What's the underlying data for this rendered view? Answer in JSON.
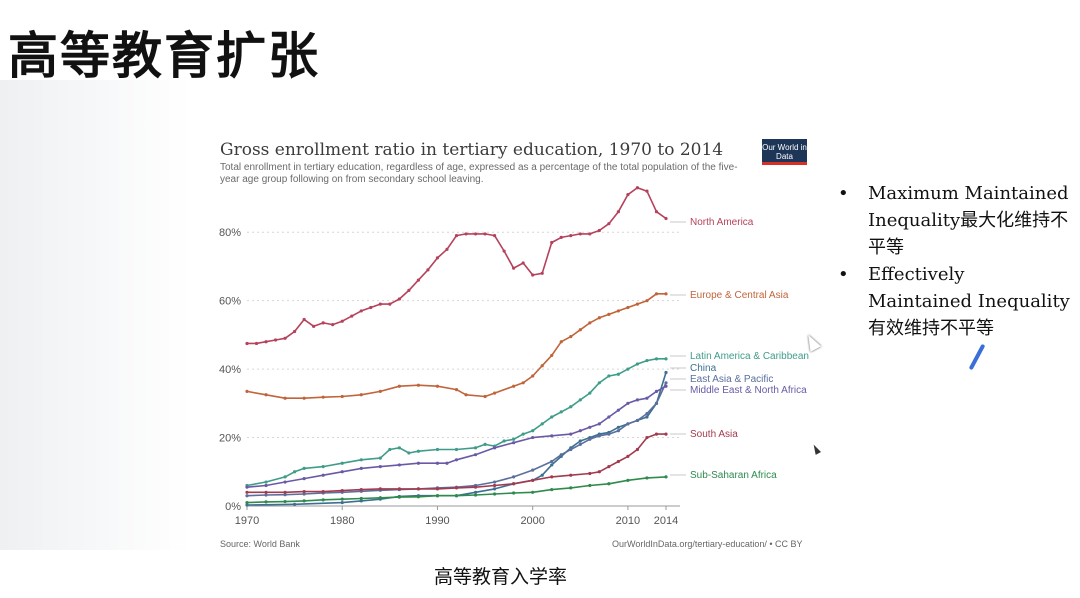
{
  "slide": {
    "title": "高等教育扩张",
    "caption": "高等教育入学率",
    "bullets": [
      "Maximum Maintained Inequality最大化维持不平等",
      "Effectively Maintained Inequality有效维持不平等"
    ]
  },
  "logo": {
    "text": "Our World in Data"
  },
  "source": {
    "left": "Source: World Bank",
    "right": "OurWorldInData.org/tertiary-education/ • CC BY"
  },
  "chart_data": {
    "type": "line",
    "title": "Gross enrollment ratio in tertiary education, 1970 to 2014",
    "subtitle": "Total enrollment in tertiary education, regardless of age, expressed as a percentage of the total population of the five-year age group following on from secondary school leaving.",
    "xlim": [
      1970,
      2014
    ],
    "ylim": [
      0,
      90
    ],
    "x_ticks": [
      "1970",
      "1980",
      "1990",
      "2000",
      "2010",
      "2014"
    ],
    "y_ticks": [
      "0%",
      "20%",
      "40%",
      "60%",
      "80%"
    ],
    "y_tick_values": [
      0,
      20,
      40,
      60,
      80
    ],
    "x_tick_values": [
      1970,
      1980,
      1990,
      2000,
      2010,
      2014
    ],
    "grid": true,
    "legend": "inline-right",
    "series": [
      {
        "name": "North America",
        "color": "#b5415b",
        "points": [
          [
            1970,
            47.5
          ],
          [
            1971,
            47.5
          ],
          [
            1972,
            48
          ],
          [
            1973,
            48.5
          ],
          [
            1974,
            49
          ],
          [
            1975,
            51
          ],
          [
            1976,
            54.5
          ],
          [
            1977,
            52.5
          ],
          [
            1978,
            53.5
          ],
          [
            1979,
            53
          ],
          [
            1980,
            54
          ],
          [
            1981,
            55.5
          ],
          [
            1982,
            57
          ],
          [
            1983,
            58
          ],
          [
            1984,
            59
          ],
          [
            1985,
            59
          ],
          [
            1986,
            60.5
          ],
          [
            1987,
            63
          ],
          [
            1988,
            66
          ],
          [
            1989,
            69
          ],
          [
            1990,
            72.5
          ],
          [
            1991,
            75
          ],
          [
            1992,
            79
          ],
          [
            1993,
            79.5
          ],
          [
            1994,
            79.5
          ],
          [
            1995,
            79.5
          ],
          [
            1996,
            79
          ],
          [
            1997,
            74.5
          ],
          [
            1998,
            69.5
          ],
          [
            1999,
            71
          ],
          [
            2000,
            67.5
          ],
          [
            2001,
            68
          ],
          [
            2002,
            77
          ],
          [
            2003,
            78.5
          ],
          [
            2004,
            79
          ],
          [
            2005,
            79.5
          ],
          [
            2006,
            79.5
          ],
          [
            2007,
            80.5
          ],
          [
            2008,
            82.5
          ],
          [
            2009,
            86
          ],
          [
            2010,
            91
          ],
          [
            2011,
            93
          ],
          [
            2012,
            92
          ],
          [
            2013,
            86
          ],
          [
            2014,
            84
          ]
        ]
      },
      {
        "name": "Europe & Central Asia",
        "color": "#c0643a",
        "points": [
          [
            1970,
            33.5
          ],
          [
            1972,
            32.5
          ],
          [
            1974,
            31.5
          ],
          [
            1976,
            31.5
          ],
          [
            1978,
            31.8
          ],
          [
            1980,
            32
          ],
          [
            1982,
            32.5
          ],
          [
            1984,
            33.5
          ],
          [
            1986,
            35
          ],
          [
            1988,
            35.3
          ],
          [
            1990,
            35
          ],
          [
            1992,
            34
          ],
          [
            1993,
            32.5
          ],
          [
            1995,
            32
          ],
          [
            1996,
            33
          ],
          [
            1998,
            35
          ],
          [
            1999,
            36
          ],
          [
            2000,
            38
          ],
          [
            2001,
            41
          ],
          [
            2002,
            44
          ],
          [
            2003,
            48
          ],
          [
            2004,
            49.5
          ],
          [
            2005,
            51.5
          ],
          [
            2006,
            53.5
          ],
          [
            2007,
            55
          ],
          [
            2008,
            56
          ],
          [
            2009,
            57
          ],
          [
            2010,
            58
          ],
          [
            2011,
            59
          ],
          [
            2012,
            60
          ],
          [
            2013,
            62
          ],
          [
            2014,
            62
          ]
        ]
      },
      {
        "name": "Latin America & Caribbean",
        "color": "#3f9c89",
        "points": [
          [
            1970,
            6
          ],
          [
            1972,
            7
          ],
          [
            1974,
            8.5
          ],
          [
            1975,
            10
          ],
          [
            1976,
            11
          ],
          [
            1978,
            11.5
          ],
          [
            1980,
            12.5
          ],
          [
            1982,
            13.5
          ],
          [
            1984,
            14
          ],
          [
            1985,
            16.5
          ],
          [
            1986,
            17
          ],
          [
            1987,
            15.5
          ],
          [
            1988,
            16
          ],
          [
            1990,
            16.5
          ],
          [
            1992,
            16.5
          ],
          [
            1994,
            17
          ],
          [
            1995,
            18
          ],
          [
            1996,
            17.5
          ],
          [
            1997,
            19
          ],
          [
            1998,
            19.5
          ],
          [
            1999,
            21
          ],
          [
            2000,
            22
          ],
          [
            2001,
            24
          ],
          [
            2002,
            26
          ],
          [
            2003,
            27.5
          ],
          [
            2004,
            29
          ],
          [
            2005,
            31
          ],
          [
            2006,
            33
          ],
          [
            2007,
            36
          ],
          [
            2008,
            38
          ],
          [
            2009,
            38.5
          ],
          [
            2010,
            40
          ],
          [
            2011,
            41.5
          ],
          [
            2012,
            42.5
          ],
          [
            2013,
            43
          ],
          [
            2014,
            43
          ]
        ]
      },
      {
        "name": "China",
        "color": "#3d6f93",
        "points": [
          [
            1970,
            0.3
          ],
          [
            1975,
            0.5
          ],
          [
            1980,
            1
          ],
          [
            1982,
            1.5
          ],
          [
            1984,
            2
          ],
          [
            1986,
            2.8
          ],
          [
            1988,
            3
          ],
          [
            1990,
            3
          ],
          [
            1992,
            3
          ],
          [
            1994,
            4
          ],
          [
            1996,
            5
          ],
          [
            1998,
            6.5
          ],
          [
            2000,
            7.5
          ],
          [
            2001,
            9
          ],
          [
            2002,
            12
          ],
          [
            2003,
            14.5
          ],
          [
            2004,
            17
          ],
          [
            2005,
            19
          ],
          [
            2006,
            20
          ],
          [
            2007,
            21
          ],
          [
            2008,
            21.5
          ],
          [
            2009,
            23
          ],
          [
            2010,
            24
          ],
          [
            2011,
            25
          ],
          [
            2012,
            26
          ],
          [
            2013,
            30
          ],
          [
            2014,
            39
          ]
        ]
      },
      {
        "name": "East Asia & Pacific",
        "color": "#5b6f9c",
        "points": [
          [
            1970,
            3
          ],
          [
            1972,
            3.2
          ],
          [
            1974,
            3.3
          ],
          [
            1976,
            3.5
          ],
          [
            1978,
            3.8
          ],
          [
            1980,
            4
          ],
          [
            1982,
            4.3
          ],
          [
            1984,
            4.6
          ],
          [
            1986,
            4.8
          ],
          [
            1988,
            5
          ],
          [
            1990,
            5.3
          ],
          [
            1992,
            5.5
          ],
          [
            1994,
            6
          ],
          [
            1996,
            7
          ],
          [
            1998,
            8.5
          ],
          [
            2000,
            10.5
          ],
          [
            2002,
            13
          ],
          [
            2003,
            15
          ],
          [
            2004,
            16.5
          ],
          [
            2005,
            18
          ],
          [
            2006,
            19.5
          ],
          [
            2007,
            20.5
          ],
          [
            2008,
            21
          ],
          [
            2009,
            22
          ],
          [
            2010,
            24
          ],
          [
            2011,
            25
          ],
          [
            2012,
            27
          ],
          [
            2013,
            30
          ],
          [
            2014,
            36
          ]
        ]
      },
      {
        "name": "Middle East & North Africa",
        "color": "#6a5aa6",
        "points": [
          [
            1970,
            5.5
          ],
          [
            1972,
            6
          ],
          [
            1974,
            7
          ],
          [
            1976,
            8
          ],
          [
            1978,
            9
          ],
          [
            1980,
            10
          ],
          [
            1982,
            11
          ],
          [
            1984,
            11.5
          ],
          [
            1986,
            12
          ],
          [
            1988,
            12.5
          ],
          [
            1990,
            12.5
          ],
          [
            1991,
            12.5
          ],
          [
            1992,
            13.5
          ],
          [
            1994,
            15
          ],
          [
            1996,
            17
          ],
          [
            1998,
            18.5
          ],
          [
            2000,
            20
          ],
          [
            2002,
            20.5
          ],
          [
            2004,
            21
          ],
          [
            2005,
            22
          ],
          [
            2006,
            23
          ],
          [
            2007,
            24
          ],
          [
            2008,
            26
          ],
          [
            2009,
            28
          ],
          [
            2010,
            30
          ],
          [
            2011,
            31
          ],
          [
            2012,
            31.5
          ],
          [
            2013,
            33.5
          ],
          [
            2014,
            35
          ]
        ]
      },
      {
        "name": "South Asia",
        "color": "#a23b4f",
        "points": [
          [
            1970,
            4
          ],
          [
            1972,
            4
          ],
          [
            1974,
            4
          ],
          [
            1976,
            4.2
          ],
          [
            1978,
            4.2
          ],
          [
            1980,
            4.5
          ],
          [
            1982,
            4.8
          ],
          [
            1984,
            5
          ],
          [
            1986,
            5
          ],
          [
            1988,
            5
          ],
          [
            1990,
            5
          ],
          [
            1992,
            5.3
          ],
          [
            1994,
            5.5
          ],
          [
            1996,
            6
          ],
          [
            1998,
            6.5
          ],
          [
            2000,
            7.5
          ],
          [
            2002,
            8.5
          ],
          [
            2004,
            9
          ],
          [
            2006,
            9.5
          ],
          [
            2007,
            10
          ],
          [
            2008,
            11.5
          ],
          [
            2009,
            13
          ],
          [
            2010,
            14.5
          ],
          [
            2011,
            16.5
          ],
          [
            2012,
            20
          ],
          [
            2013,
            21
          ],
          [
            2014,
            21
          ]
        ]
      },
      {
        "name": "Sub-Saharan Africa",
        "color": "#2f8a4d",
        "points": [
          [
            1970,
            1
          ],
          [
            1972,
            1.2
          ],
          [
            1974,
            1.3
          ],
          [
            1976,
            1.5
          ],
          [
            1978,
            1.8
          ],
          [
            1980,
            2
          ],
          [
            1982,
            2.2
          ],
          [
            1984,
            2.4
          ],
          [
            1986,
            2.6
          ],
          [
            1988,
            2.7
          ],
          [
            1990,
            3
          ],
          [
            1992,
            3
          ],
          [
            1994,
            3.2
          ],
          [
            1996,
            3.5
          ],
          [
            1998,
            3.8
          ],
          [
            2000,
            4
          ],
          [
            2002,
            4.8
          ],
          [
            2004,
            5.3
          ],
          [
            2006,
            6
          ],
          [
            2008,
            6.5
          ],
          [
            2010,
            7.5
          ],
          [
            2012,
            8.2
          ],
          [
            2014,
            8.5
          ]
        ]
      }
    ]
  }
}
